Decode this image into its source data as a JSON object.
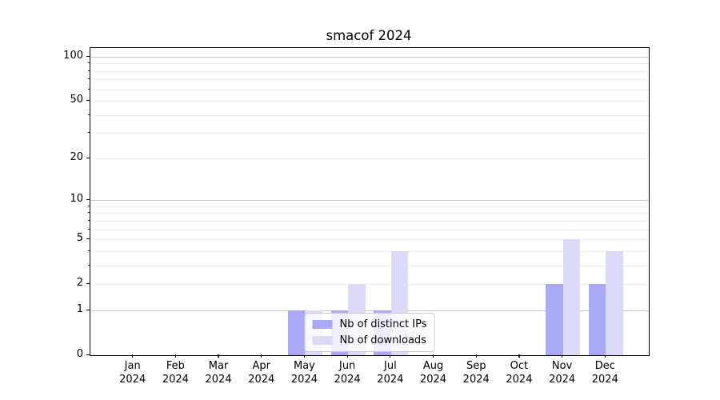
{
  "chart_data": {
    "type": "bar",
    "title": "smacof 2024",
    "categories": [
      "Jan 2024",
      "Feb 2024",
      "Mar 2024",
      "Apr 2024",
      "May 2024",
      "Jun 2024",
      "Jul 2024",
      "Aug 2024",
      "Sep 2024",
      "Oct 2024",
      "Nov 2024",
      "Dec 2024"
    ],
    "series": [
      {
        "name": "Nb of distinct IPs",
        "color": "#A9A9F5",
        "values": [
          0,
          0,
          0,
          0,
          1,
          1,
          1,
          0,
          0,
          0,
          2,
          2
        ]
      },
      {
        "name": "Nb of downloads",
        "color": "#DBDBF8",
        "values": [
          0,
          0,
          0,
          0,
          1,
          2,
          4,
          0,
          0,
          0,
          5,
          4
        ]
      }
    ],
    "xlabel": "",
    "ylabel": "",
    "yscale": "log1p",
    "ytick_values": [
      0,
      1,
      2,
      5,
      10,
      20,
      50,
      100
    ],
    "ytick_labels": [
      "0",
      "1",
      "2",
      "5",
      "10",
      "20",
      "50",
      "100"
    ],
    "grid_minor_values": [
      2,
      3,
      4,
      5,
      6,
      7,
      8,
      9,
      20,
      30,
      40,
      50,
      60,
      70,
      80,
      90
    ],
    "grid_major_values": [
      1,
      10,
      100
    ],
    "ylim": [
      0,
      115
    ],
    "grid": true,
    "legend_position": "lower center"
  }
}
